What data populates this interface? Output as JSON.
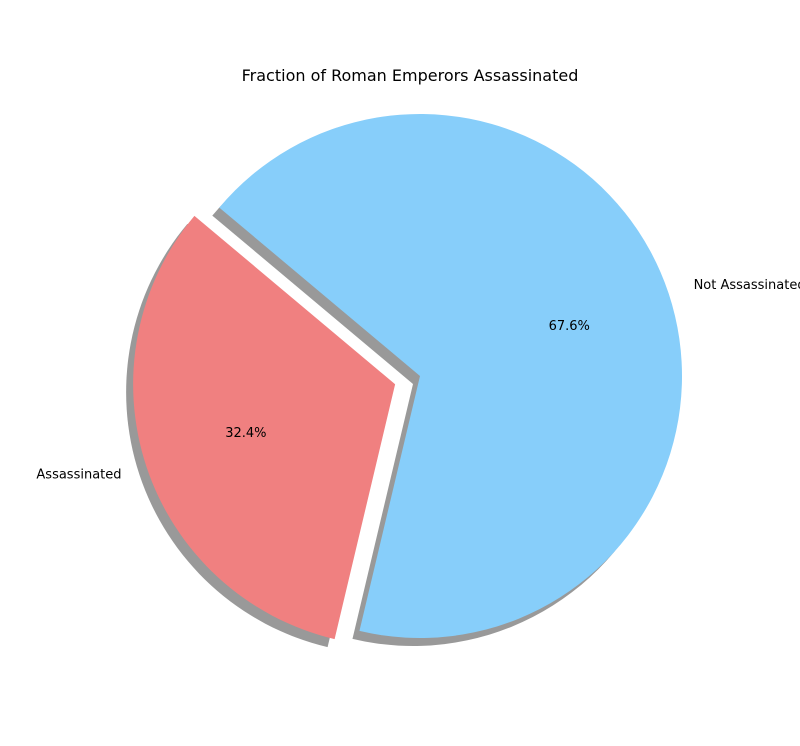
{
  "chart_data": {
    "type": "pie",
    "title": "Fraction of Roman Emperors Assassinated",
    "slices": [
      {
        "label": "Assassinated",
        "value": 32.4,
        "pct_label": "32.4%",
        "color": "#f08080",
        "exploded": true
      },
      {
        "label": "Not Assassinated",
        "value": 67.6,
        "pct_label": "67.6%",
        "color": "#87cefa",
        "exploded": false
      }
    ],
    "start_angle_deg": 140,
    "shadow": true,
    "legend": "none"
  }
}
